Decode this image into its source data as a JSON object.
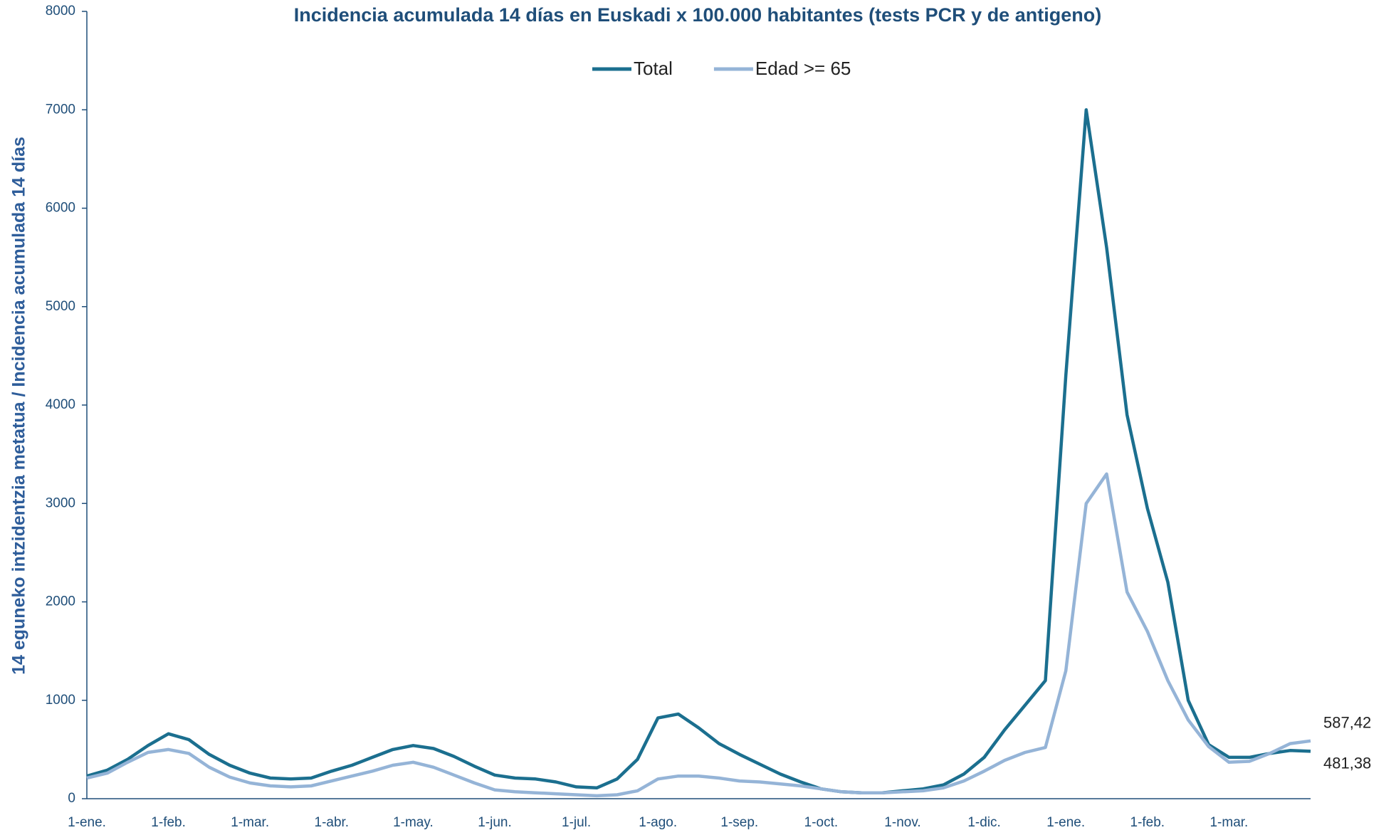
{
  "chart_data": {
    "type": "line",
    "title": "Incidencia acumulada 14 días en Euskadi x 100.000 habitantes (tests PCR y de antigeno)",
    "y_label": "14 eguneko intzidentzia metatua / Incidencia acumulada 14 días",
    "categories": [
      "1-ene.",
      null,
      null,
      null,
      "1-feb.",
      null,
      null,
      null,
      "1-mar.",
      null,
      null,
      null,
      "1-abr.",
      null,
      null,
      null,
      "1-may.",
      null,
      null,
      null,
      "1-jun.",
      null,
      null,
      null,
      "1-jul.",
      null,
      null,
      null,
      "1-ago.",
      null,
      null,
      null,
      "1-sep.",
      null,
      null,
      null,
      "1-oct.",
      null,
      null,
      null,
      "1-nov.",
      null,
      null,
      null,
      "1-dic.",
      null,
      null,
      null,
      "1-ene.",
      null,
      null,
      null,
      "1-feb.",
      null,
      null,
      null,
      "1-mar.",
      null,
      null,
      null,
      null
    ],
    "series": [
      {
        "name": "Total",
        "color": "#1b6f8f",
        "values": [
          230,
          290,
          400,
          540,
          660,
          600,
          450,
          340,
          260,
          210,
          200,
          210,
          280,
          340,
          420,
          500,
          540,
          510,
          430,
          330,
          240,
          210,
          200,
          170,
          120,
          110,
          200,
          400,
          820,
          860,
          720,
          560,
          450,
          350,
          250,
          170,
          100,
          70,
          60,
          60,
          80,
          100,
          140,
          250,
          420,
          700,
          950,
          1200,
          4300,
          7000,
          5600,
          3900,
          2950,
          2200,
          1000,
          550,
          420,
          420,
          460,
          490,
          481.38
        ],
        "value_labels": [
          null,
          null,
          null,
          null,
          null,
          null,
          null,
          null,
          null,
          null,
          null,
          null,
          null,
          null,
          null,
          null,
          null,
          null,
          null,
          null,
          null,
          null,
          null,
          null,
          null,
          null,
          null,
          null,
          null,
          null,
          null,
          null,
          null,
          null,
          null,
          null,
          null,
          null,
          null,
          null,
          null,
          null,
          null,
          null,
          null,
          null,
          null,
          null,
          null,
          null,
          null,
          null,
          null,
          null,
          null,
          null,
          null,
          null,
          null,
          null,
          "481,38"
        ]
      },
      {
        "name": "Edad >= 65",
        "color": "#95b4d7",
        "values": [
          210,
          260,
          370,
          470,
          500,
          460,
          320,
          220,
          160,
          130,
          120,
          130,
          180,
          230,
          280,
          340,
          370,
          320,
          240,
          160,
          90,
          70,
          60,
          50,
          40,
          30,
          40,
          80,
          200,
          230,
          230,
          210,
          180,
          170,
          150,
          130,
          100,
          70,
          60,
          60,
          70,
          80,
          110,
          180,
          280,
          390,
          470,
          520,
          1300,
          3000,
          3300,
          2100,
          1700,
          1200,
          800,
          530,
          370,
          380,
          460,
          560,
          587.42
        ],
        "value_labels": [
          null,
          null,
          null,
          null,
          null,
          null,
          null,
          null,
          null,
          null,
          null,
          null,
          null,
          null,
          null,
          null,
          null,
          null,
          null,
          null,
          null,
          null,
          null,
          null,
          null,
          null,
          null,
          null,
          null,
          null,
          null,
          null,
          null,
          null,
          null,
          null,
          null,
          null,
          null,
          null,
          null,
          null,
          null,
          null,
          null,
          null,
          null,
          null,
          null,
          null,
          null,
          null,
          null,
          null,
          null,
          null,
          null,
          null,
          null,
          null,
          "587,42"
        ]
      }
    ],
    "ylim": [
      0,
      8000
    ],
    "yticks": [
      0,
      1000,
      2000,
      3000,
      4000,
      5000,
      6000,
      7000,
      8000
    ],
    "grid": false,
    "legend": "top"
  }
}
